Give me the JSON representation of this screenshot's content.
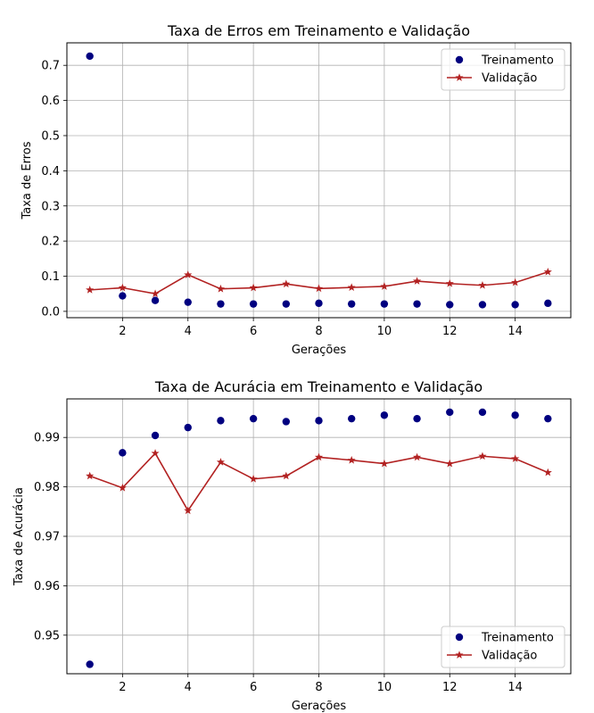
{
  "chart_data": [
    {
      "type": "line",
      "title": "Taxa de Erros em Treinamento e Validação",
      "xlabel": "Gerações",
      "ylabel": "Taxa de Erros",
      "xlim": [
        0.3,
        15.7
      ],
      "ylim": [
        -0.018,
        0.764
      ],
      "xticks": [
        2,
        4,
        6,
        8,
        10,
        12,
        14
      ],
      "yticks": [
        0.0,
        0.1,
        0.2,
        0.3,
        0.4,
        0.5,
        0.6,
        0.7
      ],
      "ytick_labels": [
        "0.0",
        "0.1",
        "0.2",
        "0.3",
        "0.4",
        "0.5",
        "0.6",
        "0.7"
      ],
      "grid": true,
      "legend_position": "top-right",
      "x": [
        1,
        2,
        3,
        4,
        5,
        6,
        7,
        8,
        9,
        10,
        11,
        12,
        13,
        14,
        15
      ],
      "series": [
        {
          "name": "Treinamento",
          "marker": "circle",
          "line": false,
          "color": "#000080",
          "values": [
            0.726,
            0.044,
            0.031,
            0.026,
            0.021,
            0.021,
            0.021,
            0.023,
            0.021,
            0.021,
            0.021,
            0.019,
            0.019,
            0.019,
            0.023
          ]
        },
        {
          "name": "Validação",
          "marker": "star",
          "line": true,
          "color": "#b22222",
          "values": [
            0.061,
            0.067,
            0.05,
            0.104,
            0.064,
            0.067,
            0.078,
            0.065,
            0.068,
            0.071,
            0.086,
            0.079,
            0.074,
            0.082,
            0.112
          ]
        }
      ]
    },
    {
      "type": "line",
      "title": "Taxa de Acurácia em Treinamento e Validação",
      "xlabel": "Gerações",
      "ylabel": "Taxa de Acurácia",
      "xlim": [
        0.3,
        15.7
      ],
      "ylim": [
        0.9422,
        0.9978
      ],
      "xticks": [
        2,
        4,
        6,
        8,
        10,
        12,
        14
      ],
      "yticks": [
        0.95,
        0.96,
        0.97,
        0.98,
        0.99
      ],
      "ytick_labels": [
        "0.95",
        "0.96",
        "0.97",
        "0.98",
        "0.99"
      ],
      "grid": true,
      "legend_position": "bottom-right",
      "x": [
        1,
        2,
        3,
        4,
        5,
        6,
        7,
        8,
        9,
        10,
        11,
        12,
        13,
        14,
        15
      ],
      "series": [
        {
          "name": "Treinamento",
          "marker": "circle",
          "line": false,
          "color": "#000080",
          "values": [
            0.9441,
            0.9869,
            0.9904,
            0.992,
            0.9934,
            0.9938,
            0.9932,
            0.9934,
            0.9938,
            0.9945,
            0.9938,
            0.9951,
            0.9951,
            0.9945,
            0.9938
          ]
        },
        {
          "name": "Validação",
          "marker": "star",
          "line": true,
          "color": "#b22222",
          "values": [
            0.9822,
            0.9798,
            0.9868,
            0.9752,
            0.985,
            0.9816,
            0.9822,
            0.986,
            0.9854,
            0.9847,
            0.986,
            0.9847,
            0.9862,
            0.9857,
            0.9829
          ]
        }
      ]
    }
  ]
}
